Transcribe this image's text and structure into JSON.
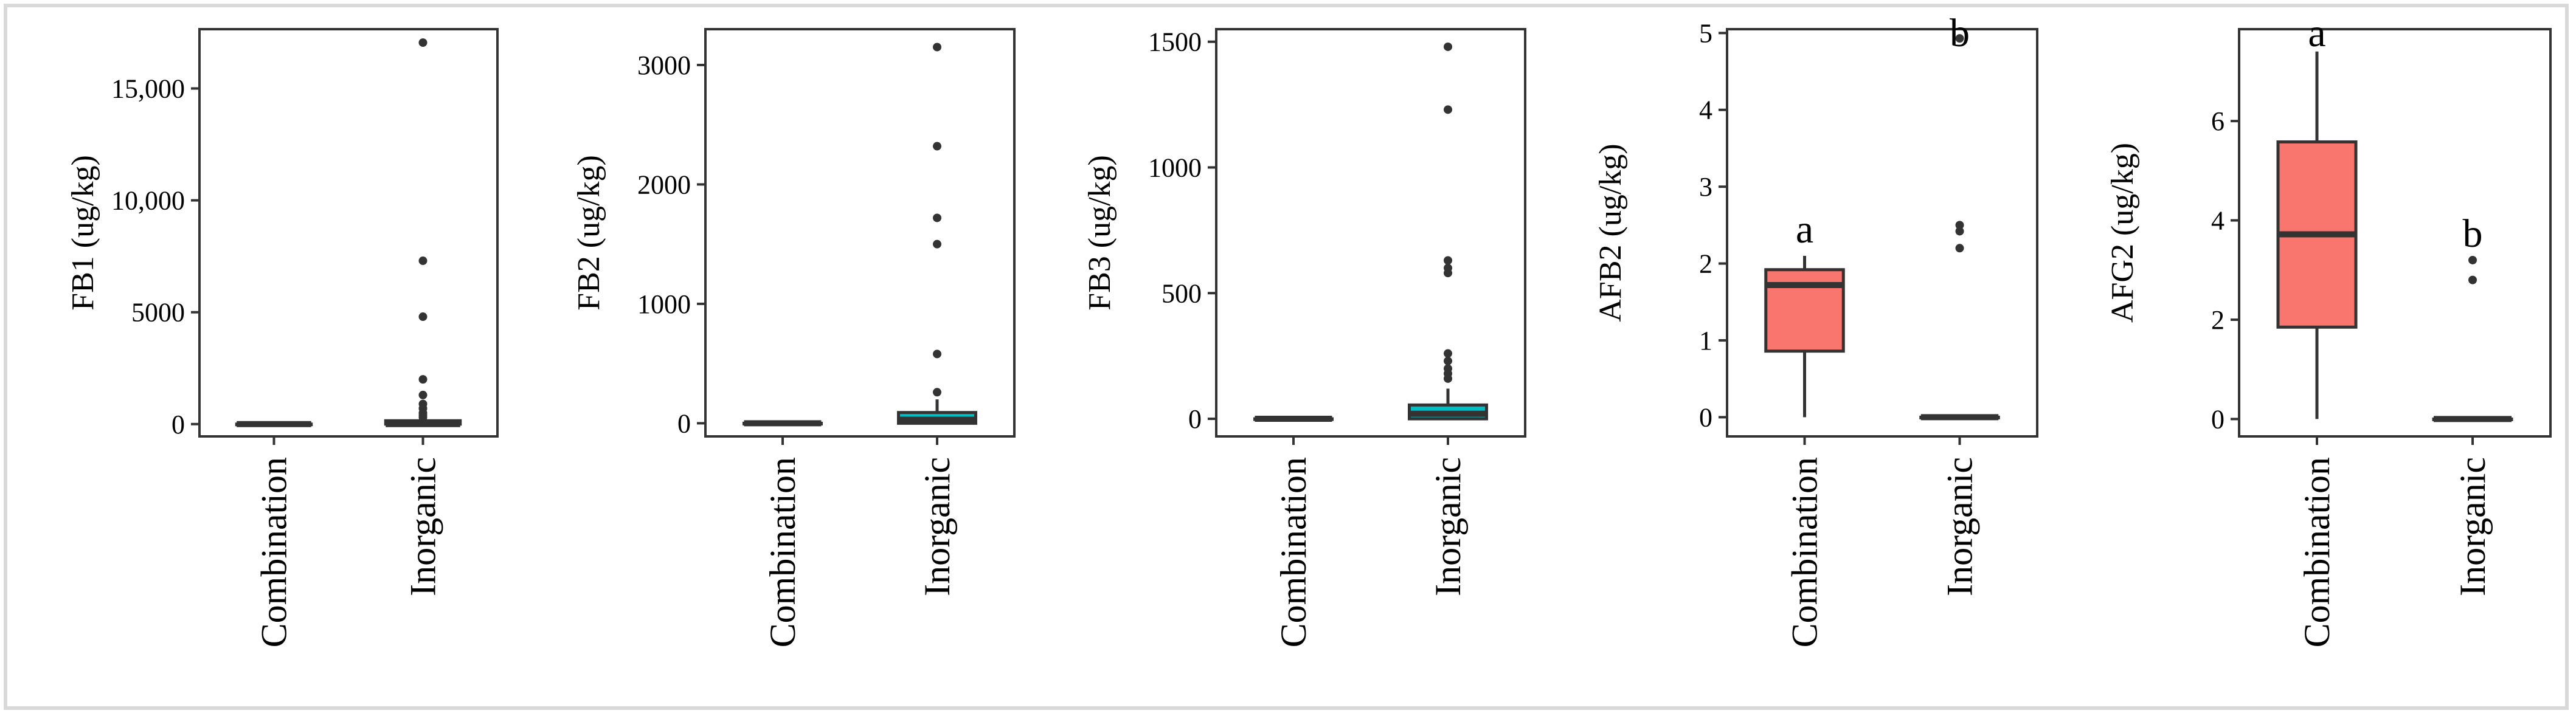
{
  "figure": {
    "frame_color": "#d9d9d9",
    "box_outline_color": "#333333",
    "fill_colors": {
      "Combination": "#f8766d",
      "Inorganic": "#00bfc4"
    }
  },
  "chart_data": [
    {
      "type": "box",
      "ylabel": "FB1 (ug/kg)",
      "categories": [
        "Combination",
        "Inorganic"
      ],
      "ylim": [
        -550,
        17650
      ],
      "yticks": [
        0,
        5000,
        10000,
        15000
      ],
      "yticklabels": [
        "0",
        "5000",
        "10,000",
        "15,000"
      ],
      "grid": false,
      "boxes": [
        {
          "category": "Combination",
          "min": 0,
          "q1": 0,
          "median": 0,
          "q3": 0,
          "max": 0,
          "outliers": [],
          "letter": ""
        },
        {
          "category": "Inorganic",
          "min": 0,
          "q1": 0,
          "median": 0,
          "q3": 150,
          "max": 300,
          "outliers": [
            17050,
            7300,
            4800,
            2000,
            1300,
            900,
            700,
            500,
            400,
            300
          ],
          "letter": ""
        }
      ]
    },
    {
      "type": "box",
      "ylabel": "FB2 (ug/kg)",
      "categories": [
        "Combination",
        "Inorganic"
      ],
      "ylim": [
        -110,
        3300
      ],
      "yticks": [
        0,
        1000,
        2000,
        3000
      ],
      "yticklabels": [
        "0",
        "1000",
        "2000",
        "3000"
      ],
      "grid": false,
      "boxes": [
        {
          "category": "Combination",
          "min": 0,
          "q1": 0,
          "median": 0,
          "q3": 0,
          "max": 0,
          "outliers": [],
          "letter": ""
        },
        {
          "category": "Inorganic",
          "min": 0,
          "q1": 0,
          "median": 30,
          "q3": 90,
          "max": 200,
          "outliers": [
            3150,
            2320,
            1720,
            1500,
            580,
            260
          ],
          "letter": ""
        }
      ]
    },
    {
      "type": "box",
      "ylabel": "FB3 (ug/kg)",
      "categories": [
        "Combination",
        "Inorganic"
      ],
      "ylim": [
        -70,
        1550
      ],
      "yticks": [
        0,
        500,
        1000,
        1500
      ],
      "yticklabels": [
        "0",
        "500",
        "1000",
        "1500"
      ],
      "grid": false,
      "boxes": [
        {
          "category": "Combination",
          "min": 0,
          "q1": 0,
          "median": 0,
          "q3": 0,
          "max": 0,
          "outliers": [],
          "letter": ""
        },
        {
          "category": "Inorganic",
          "min": 0,
          "q1": 0,
          "median": 20,
          "q3": 55,
          "max": 120,
          "outliers": [
            1480,
            1230,
            630,
            600,
            580,
            260,
            230,
            200,
            180,
            160
          ],
          "letter": ""
        }
      ]
    },
    {
      "type": "box",
      "ylabel": "AFB2 (ug/kg)",
      "categories": [
        "Combination",
        "Inorganic"
      ],
      "ylim": [
        -0.25,
        5.05
      ],
      "yticks": [
        0,
        1,
        2,
        3,
        4,
        5
      ],
      "yticklabels": [
        "0",
        "1",
        "2",
        "3",
        "4",
        "5"
      ],
      "grid": false,
      "boxes": [
        {
          "category": "Combination",
          "min": 0,
          "q1": 0.86,
          "median": 1.72,
          "q3": 1.92,
          "max": 2.1,
          "outliers": [],
          "letter": "a"
        },
        {
          "category": "Inorganic",
          "min": 0,
          "q1": 0,
          "median": 0,
          "q3": 0,
          "max": 0,
          "outliers": [
            4.93,
            2.5,
            2.42,
            2.2
          ],
          "letter": "b"
        }
      ]
    },
    {
      "type": "box",
      "ylabel": "AFG2 (ug/kg)",
      "categories": [
        "Combination",
        "Inorganic"
      ],
      "ylim": [
        -0.35,
        7.85
      ],
      "yticks": [
        0,
        2,
        4,
        6
      ],
      "yticklabels": [
        "0",
        "2",
        "4",
        "6"
      ],
      "grid": false,
      "boxes": [
        {
          "category": "Combination",
          "min": 0,
          "q1": 1.85,
          "median": 3.72,
          "q3": 5.58,
          "max": 7.4,
          "outliers": [],
          "letter": "a"
        },
        {
          "category": "Inorganic",
          "min": 0,
          "q1": 0,
          "median": 0,
          "q3": 0,
          "max": 0,
          "outliers": [
            3.2,
            2.8
          ],
          "letter": "b"
        }
      ]
    }
  ]
}
